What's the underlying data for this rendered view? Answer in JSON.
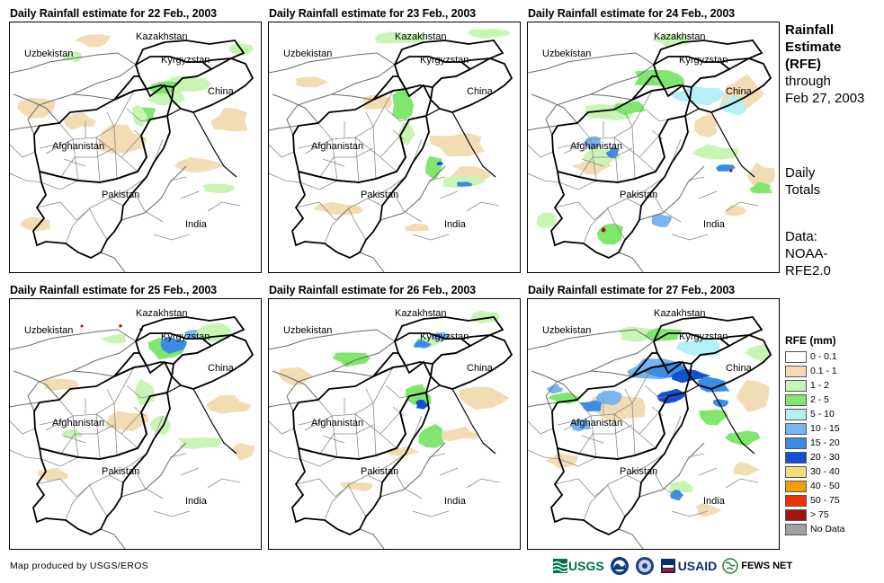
{
  "panels": [
    {
      "title": "Daily Rainfall estimate for 22 Feb., 2003",
      "day": "22"
    },
    {
      "title": "Daily Rainfall estimate for 23 Feb., 2003",
      "day": "23"
    },
    {
      "title": "Daily Rainfall estimate for 24 Feb., 2003",
      "day": "24"
    },
    {
      "title": "Daily Rainfall estimate for 25 Feb., 2003",
      "day": "25"
    },
    {
      "title": "Daily Rainfall estimate for 26 Feb., 2003",
      "day": "26"
    },
    {
      "title": "Daily Rainfall estimate for 27 Feb., 2003",
      "day": "27"
    }
  ],
  "map_labels": {
    "kazakhstan": "Kazakhstan",
    "uzbekistan": "Uzbekistan",
    "kyrgyzstan": "Kyrgyzstan",
    "china": "China",
    "afghanistan": "Afghanistan",
    "pakistan": "Pakistan",
    "india": "India"
  },
  "side": {
    "title_bold": [
      "Rainfall",
      "Estimate",
      "(RFE)"
    ],
    "title_normal": [
      "through",
      "Feb 27, 2003"
    ],
    "totals": [
      "Daily",
      "Totals"
    ],
    "data": [
      "Data:",
      "NOAA-",
      "RFE2.0"
    ]
  },
  "legend": {
    "title": "RFE (mm)",
    "items": [
      {
        "label": "0 - 0.1",
        "color": "#ffffff"
      },
      {
        "label": "0.1 - 1",
        "color": "#f2dcb4"
      },
      {
        "label": "1 - 2",
        "color": "#c8f5b4"
      },
      {
        "label": "2 - 5",
        "color": "#80e66e"
      },
      {
        "label": "5 - 10",
        "color": "#b4f0f5"
      },
      {
        "label": "10 - 15",
        "color": "#78b4f0"
      },
      {
        "label": "15 - 20",
        "color": "#3c8ce6"
      },
      {
        "label": "20 - 30",
        "color": "#1450d2"
      },
      {
        "label": "30 - 40",
        "color": "#f5dc78"
      },
      {
        "label": "40 - 50",
        "color": "#f5a000"
      },
      {
        "label": "50 - 75",
        "color": "#f03200"
      },
      {
        "label": "> 75",
        "color": "#a01414"
      },
      {
        "label": "No Data",
        "color": "#a0a0a0"
      }
    ]
  },
  "credit": "Map produced by USGS/EROS",
  "logos": {
    "usgs": "USGS",
    "usaid": "USAID",
    "fews": "FEWS NET"
  }
}
